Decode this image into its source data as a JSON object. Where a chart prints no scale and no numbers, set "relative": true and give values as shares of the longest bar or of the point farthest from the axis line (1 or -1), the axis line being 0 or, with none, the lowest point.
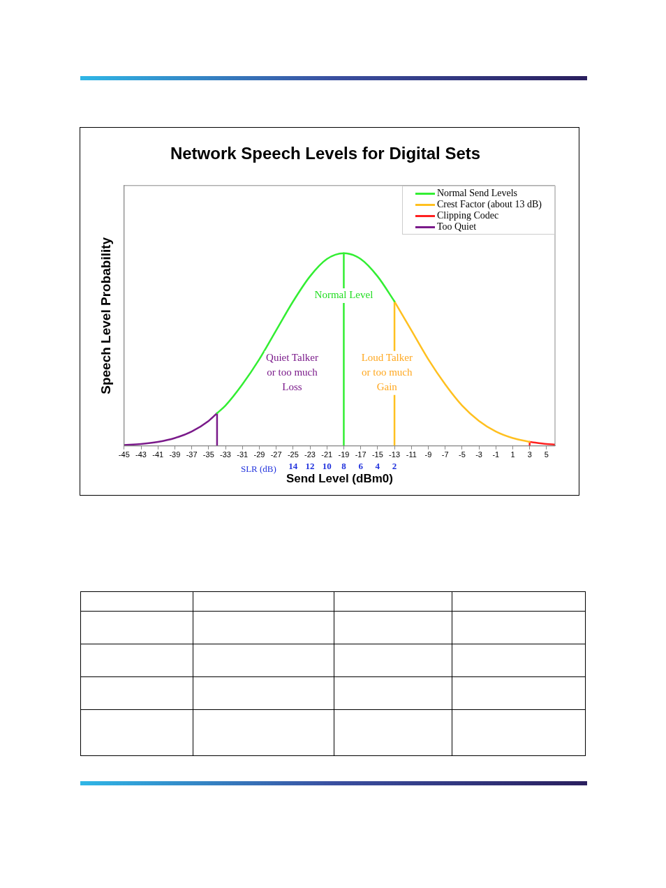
{
  "chart_data": {
    "type": "line",
    "title": "Network Speech Levels for Digital Sets",
    "xlabel": "Send Level (dBm0)",
    "ylabel": "Speech Level Probability",
    "x2label": "SLR (dB)",
    "relative": true,
    "marker": "none",
    "grid": false,
    "legend": "top right",
    "xlim": [
      -45,
      6
    ],
    "xticks": [
      -45,
      -43,
      -41,
      -39,
      -37,
      -35,
      -33,
      -31,
      -29,
      -27,
      -25,
      -23,
      -21,
      -19,
      -17,
      -15,
      -13,
      -11,
      -9,
      -7,
      -5,
      -3,
      -1,
      1,
      3,
      5
    ],
    "x2lim": [
      34,
      -17
    ],
    "x2ticks": [
      14,
      12,
      10,
      8,
      6,
      4,
      2
    ],
    "series": [
      {
        "name": "Normal Send Levels",
        "color": "#33ee33",
        "x": [
          -34,
          -33,
          -31,
          -29,
          -27,
          -25,
          -23,
          -21,
          -19,
          -17,
          -15,
          -13
        ],
        "values": [
          0.17,
          0.21,
          0.32,
          0.45,
          0.6,
          0.75,
          0.88,
          0.97,
          1,
          0.97,
          0.88,
          0.75
        ]
      },
      {
        "name": "Crest Factor (about 13 dB)",
        "color": "#ffc020",
        "x": [
          -13,
          -11,
          -9,
          -7,
          -5,
          -3,
          -1,
          1,
          3
        ],
        "values": [
          0.75,
          0.6,
          0.45,
          0.32,
          0.21,
          0.13,
          0.075,
          0.041,
          0.021
        ]
      },
      {
        "name": "Clipping Codec",
        "color": "#ff2020",
        "x": [
          3,
          5,
          6
        ],
        "values": [
          0.021,
          0.01,
          0.007
        ]
      },
      {
        "name": "Too Quiet",
        "color": "#7a1a8a",
        "x": [
          -45,
          -43,
          -41,
          -39,
          -37,
          -35,
          -34
        ],
        "values": [
          0.005,
          0.01,
          0.021,
          0.041,
          0.075,
          0.13,
          0.17
        ]
      },
      {
        "color": "#7a1a8a",
        "x": [
          -34,
          -34
        ],
        "values": [
          0,
          0.17
        ]
      },
      {
        "color": "#33ee33",
        "x": [
          -19,
          -19
        ],
        "values": [
          0,
          1
        ]
      },
      {
        "color": "#ffc020",
        "x": [
          -13,
          -13
        ],
        "values": [
          0,
          0.75
        ]
      },
      {
        "color": "#ff2020",
        "x": [
          3,
          3
        ],
        "values": [
          0,
          0.021
        ]
      }
    ],
    "annotations": [
      {
        "text": "Normal Level",
        "x": -19,
        "y": 0.78
      },
      "Quiet Talker\nor too much\nLoss",
      "Loud Talker\nor too much\nGain"
    ]
  }
}
